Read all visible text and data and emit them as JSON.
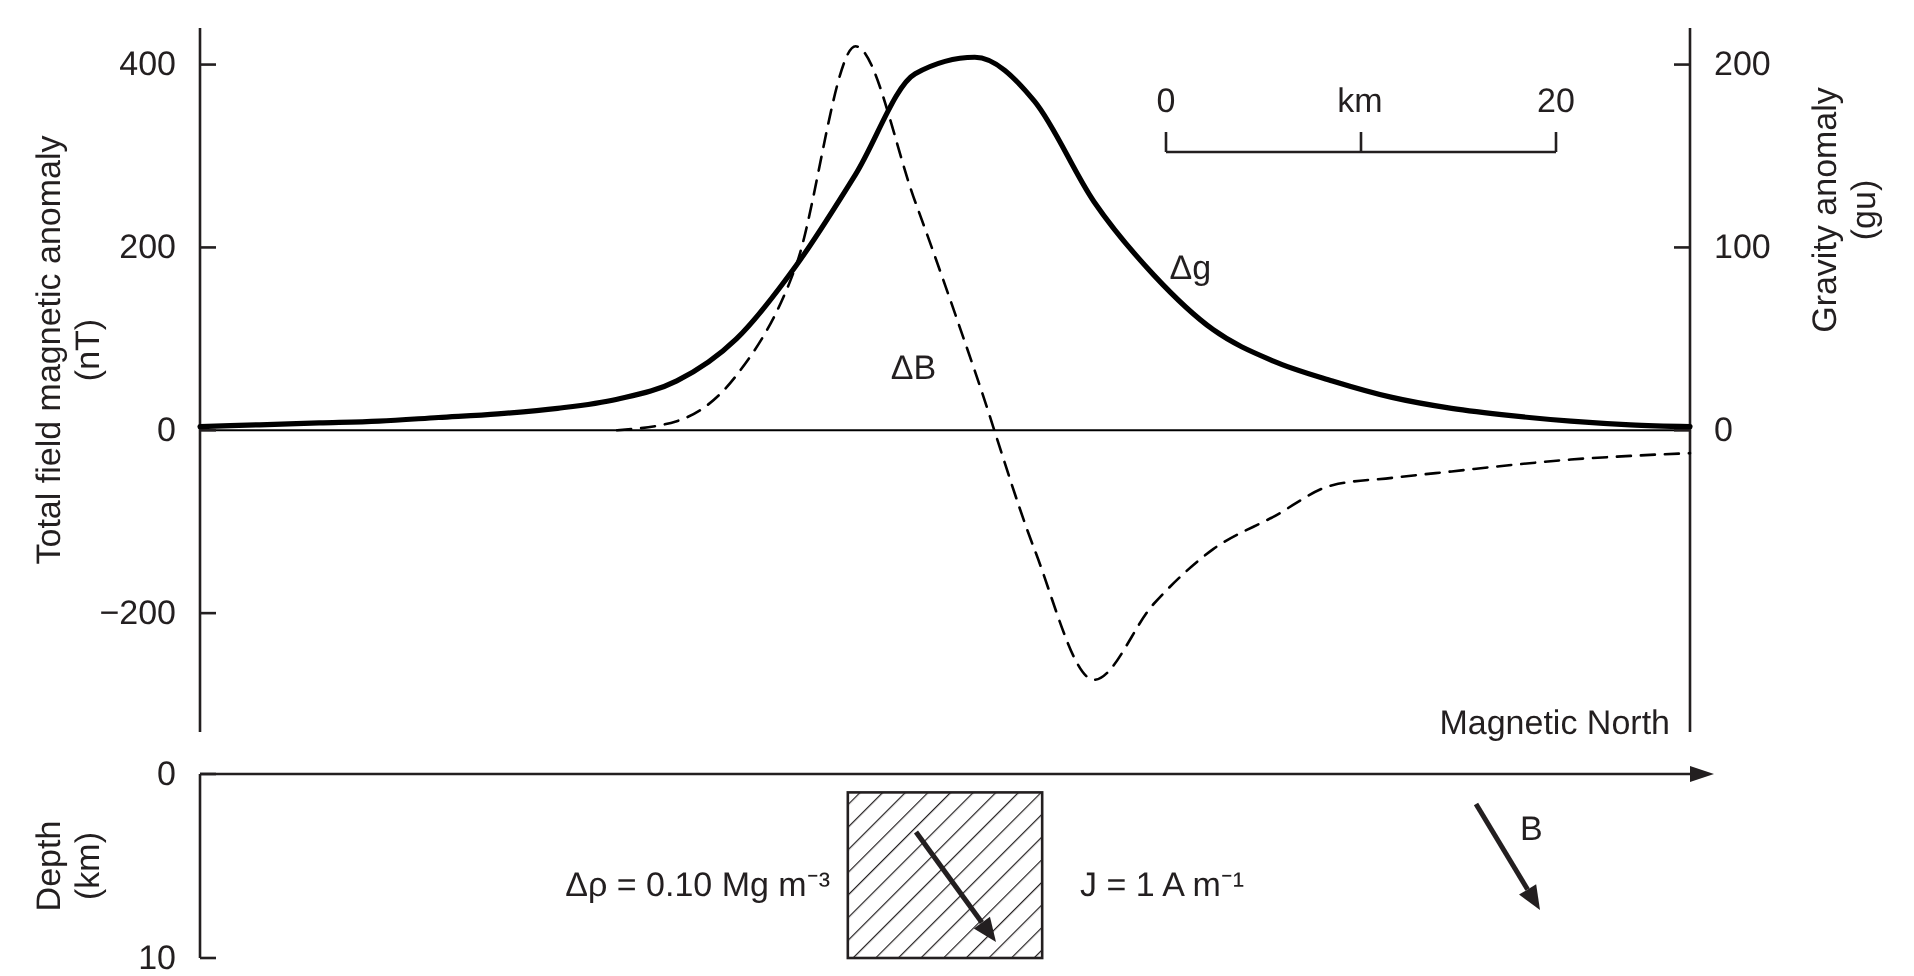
{
  "chart_data": [
    {
      "type": "line",
      "ylabel": "Total field magnetic anomaly (nT)",
      "y2label": "Gravity anomaly (gu)",
      "categories": [
        null,
        null,
        null,
        null,
        null,
        null,
        null,
        null,
        null,
        null,
        null,
        null,
        null,
        null,
        null,
        null,
        null,
        null,
        null,
        null,
        null,
        null,
        null,
        null,
        null,
        null
      ],
      "series": [
        {
          "name": "Δg",
          "color": "#000000",
          "axis": "y2",
          "line_style": "solid",
          "values": [
            2,
            3,
            4,
            5,
            7,
            9,
            12,
            17,
            27,
            50,
            90,
            140,
            195,
            204,
            180,
            125,
            85,
            55,
            38,
            27,
            18,
            12,
            8,
            5,
            3,
            2
          ]
        },
        {
          "name": "ΔB",
          "color": "#000000",
          "axis": "y",
          "line_style": "dashed",
          "values": [
            null,
            null,
            null,
            null,
            null,
            null,
            null,
            0,
            10,
            60,
            180,
            420,
            250,
            65,
            -130,
            -273,
            -190,
            -130,
            -95,
            -60,
            -52,
            -45,
            -38,
            -32,
            -28,
            -25
          ]
        }
      ],
      "ylim": [
        -330,
        440
      ],
      "yticks": [
        -200,
        0,
        200,
        400
      ],
      "y2lim": [
        -165,
        220
      ],
      "y2ticks": [
        0,
        100,
        200
      ],
      "annotations": [
        "0",
        "km",
        "20"
      ]
    },
    {
      "type": "bar",
      "ylabel": "Depth (km)",
      "xlabel": "Magnetic North",
      "categories": [
        null,
        null,
        null,
        null,
        null,
        null,
        null
      ],
      "values": [
        null,
        null,
        null,
        9,
        null,
        null,
        null
      ],
      "base": [
        null,
        null,
        null,
        1,
        null,
        null,
        null
      ],
      "color": "#231f20",
      "ylim": [
        10,
        0
      ],
      "yticks": [
        0,
        10
      ],
      "annotations": [
        "Δρ = 0.10 Mg m⁻³",
        "J = 1 A m⁻¹",
        "B"
      ]
    }
  ]
}
